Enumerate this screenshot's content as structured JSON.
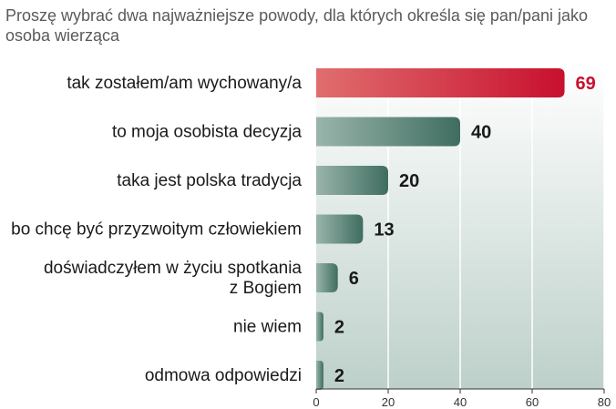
{
  "chart_data": {
    "type": "bar",
    "orientation": "horizontal",
    "title": "Proszę wybrać dwa najważniejsze powody, dla których określa się pan/pani jako osoba wierząca",
    "categories": [
      [
        "tak zostałem/am wychowany/a"
      ],
      [
        "to moja osobista decyzja"
      ],
      [
        "taka jest polska tradycja"
      ],
      [
        "bo chcę być przyzwoitym człowiekiem"
      ],
      [
        "doświadczyłem w życiu spotkania",
        "z Bogiem"
      ],
      [
        "nie wiem"
      ],
      [
        "odmowa odpowiedzi"
      ]
    ],
    "values": [
      69,
      40,
      20,
      13,
      6,
      2,
      2
    ],
    "value_labels": [
      "69",
      "40",
      "20",
      "13",
      "6",
      "2",
      "2"
    ],
    "highlight_index": 0,
    "xlim": [
      0,
      80
    ],
    "xticks": [
      "0",
      "20",
      "40",
      "60",
      "80"
    ],
    "grid": true,
    "colors": {
      "highlight_start": "#e06e6e",
      "highlight_end": "#c8102e",
      "bar_start": "#9ab5ab",
      "bar_end": "#3f6d60",
      "panel_top": "#ffffff",
      "panel_bottom": "#bdd0ca",
      "axis": "#333333"
    }
  }
}
